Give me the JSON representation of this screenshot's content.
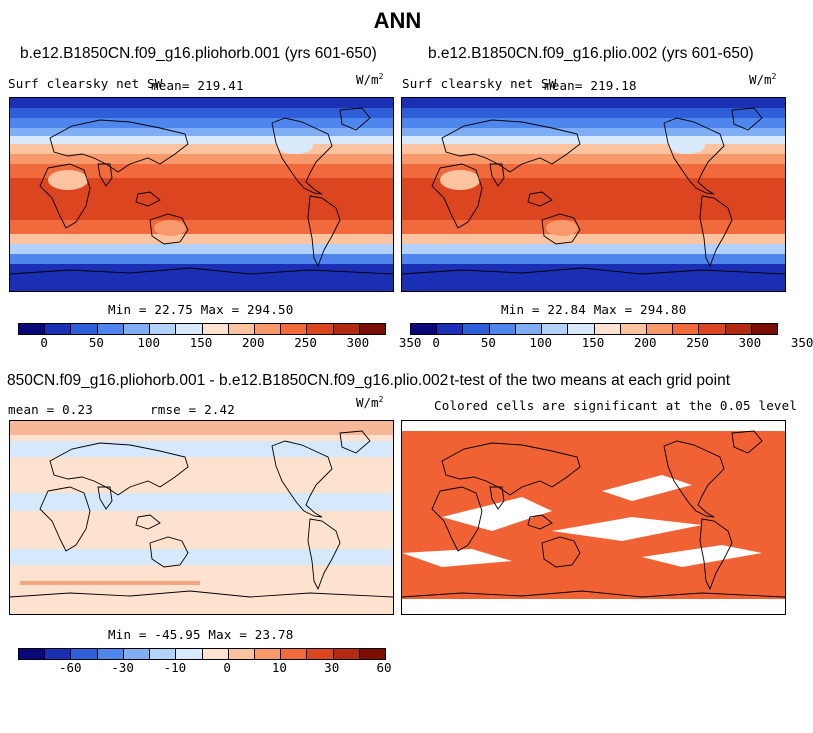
{
  "figure_title": "ANN",
  "units": "W/m",
  "units_sup": "2",
  "colors": {
    "land_outline": "#000000",
    "sig_fill": "#f06234",
    "diff_pos": "#fde2cf",
    "diff_neg": "#d6e8fc",
    "diff_strong": "#f4a582"
  },
  "palette": [
    "#08087a",
    "#1b2fb5",
    "#2f5fd8",
    "#4f86ee",
    "#7faef5",
    "#b3d2fb",
    "#d9e9fc",
    "#fde3d0",
    "#fbc3a0",
    "#f8996c",
    "#f06a3c",
    "#db4520",
    "#b22a12",
    "#7d0e06"
  ],
  "chart_data": [
    {
      "type": "heatmap",
      "panel": "top-left",
      "title": "b.e12.B1850CN.f09_g16.pliohorb.001 (yrs 601-650)",
      "variable": "Surf clearsky net SW",
      "mean_text": "mean= 219.41",
      "minmax_text": "Min =  22.75 Max = 294.50",
      "stats": {
        "mean": 219.41,
        "min": 22.75,
        "max": 294.5
      },
      "ticks": [
        "0",
        "50",
        "100",
        "150",
        "200",
        "250",
        "300",
        "350"
      ],
      "colorbar_levels": [
        0,
        25,
        50,
        75,
        100,
        125,
        150,
        175,
        200,
        225,
        250,
        275,
        300,
        325,
        350
      ]
    },
    {
      "type": "heatmap",
      "panel": "top-right",
      "title": "b.e12.B1850CN.f09_g16.plio.002 (yrs 601-650)",
      "variable": "Surf clearsky net SW",
      "mean_text": "mean= 219.18",
      "minmax_text": "Min =  22.84 Max = 294.80",
      "stats": {
        "mean": 219.18,
        "min": 22.84,
        "max": 294.8
      },
      "ticks": [
        "0",
        "50",
        "100",
        "150",
        "200",
        "250",
        "300",
        "350"
      ],
      "colorbar_levels": [
        0,
        25,
        50,
        75,
        100,
        125,
        150,
        175,
        200,
        225,
        250,
        275,
        300,
        325,
        350
      ]
    },
    {
      "type": "heatmap",
      "panel": "bottom-left",
      "title": "850CN.f09_g16.pliohorb.001 - b.e12.B1850CN.f09_g16.plio.002",
      "mean_text": "mean =    0.23",
      "rmse_text": "rmse =    2.42",
      "minmax_text": "Min = -45.95 Max =  23.78",
      "stats": {
        "mean": 0.23,
        "rmse": 2.42,
        "min": -45.95,
        "max": 23.78
      },
      "ticks": [
        "-60",
        "-30",
        "-10",
        "0",
        "10",
        "30",
        "60"
      ]
    },
    {
      "type": "heatmap",
      "panel": "bottom-right",
      "title": "t-test of the two means at each grid point",
      "subtitle": "Colored cells are significant at the 0.05 level",
      "significance_level": 0.05
    }
  ]
}
